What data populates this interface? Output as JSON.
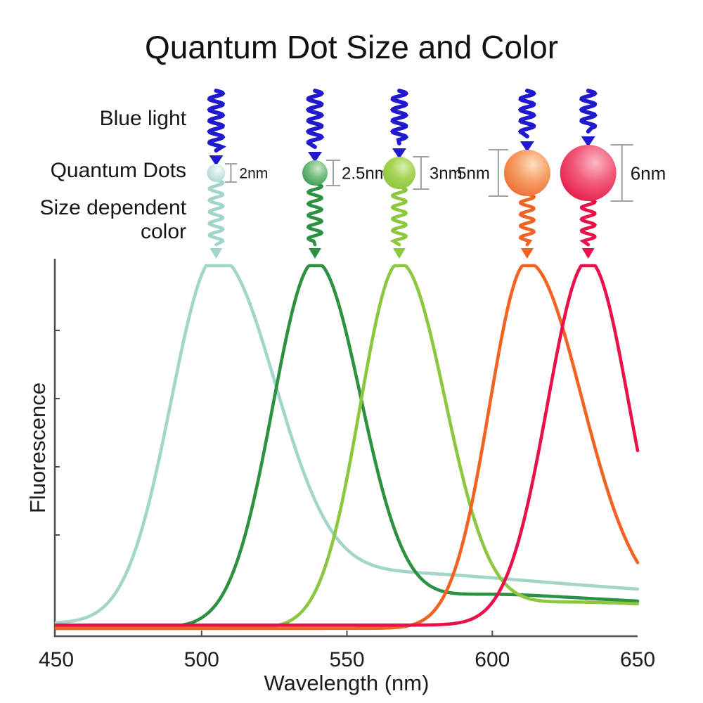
{
  "title": "Quantum Dot Size and Color",
  "diagram": {
    "labels": {
      "blue_light": "Blue light",
      "quantum_dots": "Quantum Dots",
      "size_dependent_line1": "Size dependent",
      "size_dependent_line2": "color"
    },
    "blue_light_color": "#2119cd",
    "bracket_color": "#9aa3a3",
    "dots": [
      {
        "size_label": "2nm",
        "size_nm": 2,
        "label_side": "right",
        "emission_color": "#a3d5cb",
        "sphere": {
          "highlight": "#f2fbf9",
          "body": "#cfeae5",
          "edge": "#a9d9d1"
        }
      },
      {
        "size_label": "2.5nm",
        "size_nm": 2.5,
        "label_side": "right",
        "emission_color": "#2d9142",
        "sphere": {
          "highlight": "#cde9cc",
          "body": "#7abf83",
          "edge": "#3f9a55"
        }
      },
      {
        "size_label": "3nm",
        "size_nm": 3,
        "label_side": "right",
        "emission_color": "#8dc63f",
        "sphere": {
          "highlight": "#d9eeb0",
          "body": "#a6d455",
          "edge": "#8bc43c"
        }
      },
      {
        "size_label": "5nm",
        "size_nm": 5,
        "label_side": "left",
        "emission_color": "#f26322",
        "sphere": {
          "highlight": "#fddfc0",
          "body": "#f79e67",
          "edge": "#ef6d31"
        }
      },
      {
        "size_label": "6nm",
        "size_nm": 6,
        "label_side": "right",
        "emission_color": "#e8114a",
        "sphere": {
          "highlight": "#fab9c5",
          "body": "#f25c7b",
          "edge": "#e7194a"
        }
      }
    ]
  },
  "chart_data": {
    "type": "line",
    "xlabel": "Wavelength (nm)",
    "ylabel": "Fluorescence",
    "xlim": [
      450,
      650
    ],
    "x_ticks": [
      "450",
      "500",
      "550",
      "600",
      "650"
    ],
    "y_ticks_unlabeled": 4,
    "grid": false,
    "legend": false,
    "series": [
      {
        "name": "2nm quantum dot emission",
        "color": "#a3d5cb",
        "peak_nm": 505,
        "peak_height": 1.0,
        "sigma_left_nm": 15.5,
        "sigma_right_nm": 21,
        "baseline": 0.02,
        "tail": {
          "level": 0.22,
          "decay_nm": 170,
          "onset_nm": 40,
          "soft_nm": 12
        }
      },
      {
        "name": "2.5nm quantum dot emission",
        "color": "#2d9142",
        "peak_nm": 539,
        "peak_height": 1.0,
        "sigma_left_nm": 14.5,
        "sigma_right_nm": 16,
        "baseline": 0.008,
        "tail": {
          "level": 0.14,
          "decay_nm": 170,
          "onset_nm": 35,
          "soft_nm": 10
        }
      },
      {
        "name": "3nm quantum dot emission",
        "color": "#8dc63f",
        "peak_nm": 568,
        "peak_height": 1.0,
        "sigma_left_nm": 13.5,
        "sigma_right_nm": 16,
        "baseline": 0.006,
        "tail": {
          "level": 0.11,
          "decay_nm": 170,
          "onset_nm": 35,
          "soft_nm": 10
        }
      },
      {
        "name": "5nm quantum dot emission",
        "color": "#f26322",
        "peak_nm": 612,
        "peak_height": 1.0,
        "sigma_left_nm": 13,
        "sigma_right_nm": 19,
        "baseline": 0.006,
        "tail": {
          "level": 0.08,
          "decay_nm": 130,
          "onset_nm": 28,
          "soft_nm": 9
        }
      },
      {
        "name": "6nm quantum dot emission",
        "color": "#e8114a",
        "peak_nm": 633,
        "peak_height": 1.0,
        "sigma_left_nm": 14,
        "sigma_right_nm": 14,
        "baseline": 0.015,
        "tail": {
          "level": 0.0,
          "decay_nm": 200,
          "onset_nm": 30,
          "soft_nm": 9
        }
      }
    ]
  }
}
